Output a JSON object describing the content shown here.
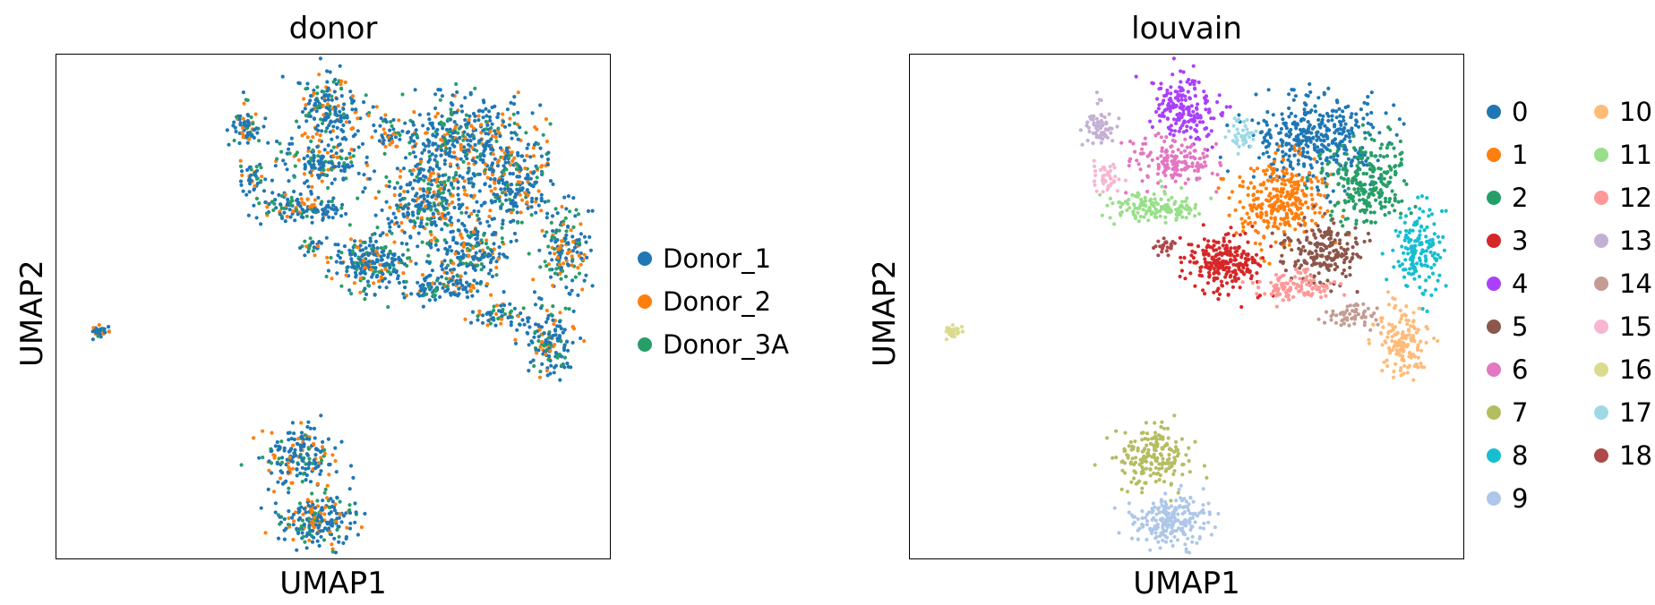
{
  "chart_data": [
    {
      "type": "scatter",
      "title": "donor",
      "xlabel": "UMAP1",
      "ylabel": "UMAP2",
      "legend": {
        "placement": "right",
        "entries": [
          {
            "name": "Donor_1",
            "color": "#1f77b4"
          },
          {
            "name": "Donor_2",
            "color": "#ff7f0e"
          },
          {
            "name": "Donor_3A",
            "color": "#279e68"
          }
        ]
      }
    },
    {
      "type": "scatter",
      "title": "louvain",
      "xlabel": "UMAP1",
      "ylabel": "UMAP2",
      "legend": {
        "placement": "right",
        "columns": 2,
        "entries": [
          {
            "name": "0",
            "color": "#1f77b4"
          },
          {
            "name": "1",
            "color": "#ff7f0e"
          },
          {
            "name": "2",
            "color": "#279e68"
          },
          {
            "name": "3",
            "color": "#d62728"
          },
          {
            "name": "4",
            "color": "#aa40fc"
          },
          {
            "name": "5",
            "color": "#8c564b"
          },
          {
            "name": "6",
            "color": "#e377c2"
          },
          {
            "name": "7",
            "color": "#b5bd61"
          },
          {
            "name": "8",
            "color": "#17becf"
          },
          {
            "name": "9",
            "color": "#aec7e8"
          },
          {
            "name": "10",
            "color": "#ffbb78"
          },
          {
            "name": "11",
            "color": "#98df8a"
          },
          {
            "name": "12",
            "color": "#ff9896"
          },
          {
            "name": "13",
            "color": "#c5b0d5"
          },
          {
            "name": "14",
            "color": "#c49c94"
          },
          {
            "name": "15",
            "color": "#f7b6d2"
          },
          {
            "name": "16",
            "color": "#dbdb8d"
          },
          {
            "name": "17",
            "color": "#9edae5"
          },
          {
            "name": "18",
            "color": "#ad494a"
          }
        ]
      }
    }
  ]
}
